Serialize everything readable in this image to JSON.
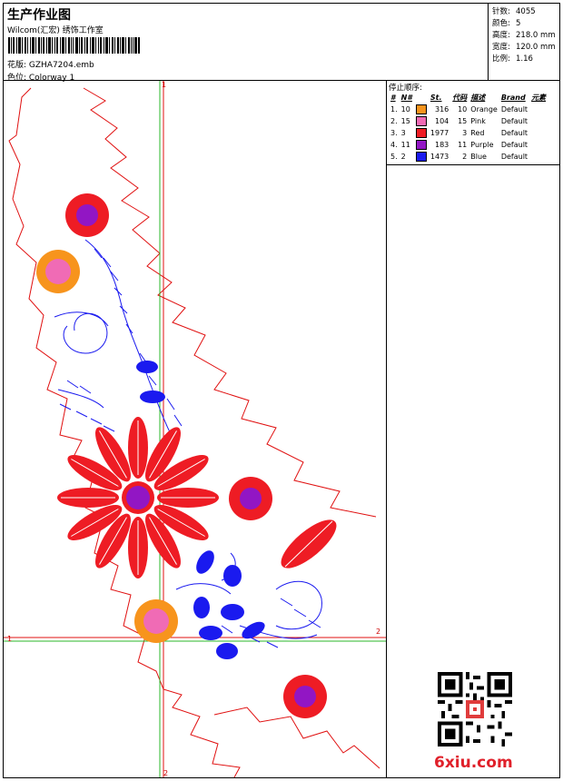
{
  "header": {
    "title": "生产作业图",
    "subtitle": "Wilcom(汇宏) 绣饰工作室",
    "design": "花版: GZHA7204.emb",
    "colorway": "色位: Colorway 1"
  },
  "stats": [
    {
      "label": "针数:",
      "value": "4055"
    },
    {
      "label": "颜色:",
      "value": "5"
    },
    {
      "label": "高度:",
      "value": "218.0 mm"
    },
    {
      "label": "宽度:",
      "value": "120.0 mm"
    },
    {
      "label": "比例:",
      "value": "1.16"
    }
  ],
  "stop_sequence": {
    "title": "停止顺序:",
    "headers": [
      "#",
      "N#",
      "St.",
      "代码",
      "描述",
      "Brand",
      "元素"
    ],
    "rows": [
      {
        "idx": "1.",
        "n": "10",
        "color": "#f7941d",
        "st": "316",
        "code": "10",
        "desc": "Orange",
        "brand": "Default"
      },
      {
        "idx": "2.",
        "n": "15",
        "color": "#f06bb5",
        "st": "104",
        "code": "15",
        "desc": "Pink",
        "brand": "Default"
      },
      {
        "idx": "3.",
        "n": "3",
        "color": "#ee1c24",
        "st": "1977",
        "code": "3",
        "desc": "Red",
        "brand": "Default"
      },
      {
        "idx": "4.",
        "n": "11",
        "color": "#9216c4",
        "st": "183",
        "code": "11",
        "desc": "Purple",
        "brand": "Default"
      },
      {
        "idx": "5.",
        "n": "2",
        "color": "#1a1aef",
        "st": "1473",
        "code": "2",
        "desc": "Blue",
        "brand": "Default"
      }
    ]
  },
  "axis_labels": {
    "top": "1",
    "bottom": "2",
    "left": "1",
    "right": "2"
  },
  "watermark": {
    "site": "6xiu.com",
    "qr_icon": "qr-code-icon"
  },
  "colors": {
    "red": "#ee1c24",
    "blue": "#1a1aef",
    "orange": "#f7941d",
    "pink": "#f06bb5",
    "purple": "#9216c4",
    "guide_green": "#2bb82b",
    "guide_red": "#e01010"
  }
}
